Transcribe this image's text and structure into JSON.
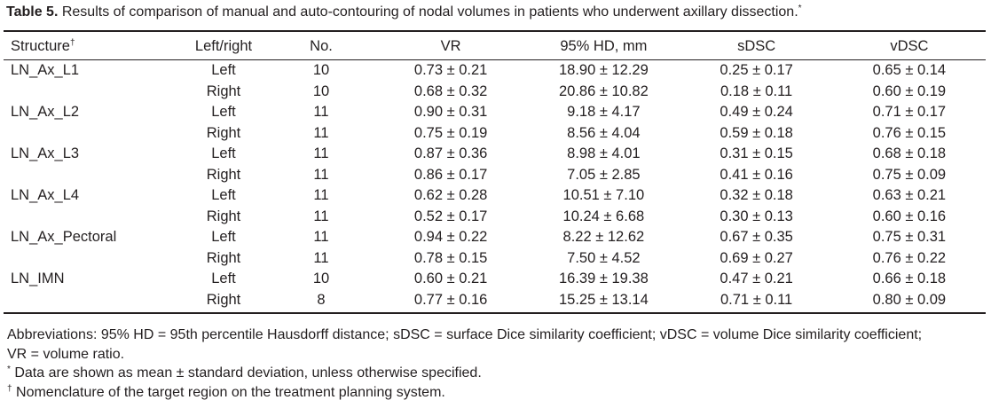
{
  "caption": {
    "label": "Table 5.",
    "text": " Results of comparison of manual and auto-contouring of nodal volumes in patients who underwent axillary dissection.",
    "mark": "*"
  },
  "columns": {
    "structure": "Structure",
    "structure_mark": "†",
    "side": "Left/right",
    "number": "No.",
    "vr": "VR",
    "hd": "95% HD, mm",
    "sdsc": "sDSC",
    "vdsc": "vDSC"
  },
  "rows": [
    {
      "structure": "LN_Ax_L1",
      "side": "Left",
      "n": "10",
      "vr": "0.73 ± 0.21",
      "hd": "18.90 ± 12.29",
      "sdsc": "0.25 ± 0.17",
      "vdsc": "0.65 ± 0.14"
    },
    {
      "structure": "",
      "side": "Right",
      "n": "10",
      "vr": "0.68 ± 0.32",
      "hd": "20.86 ± 10.82",
      "sdsc": "0.18 ± 0.11",
      "vdsc": "0.60 ± 0.19"
    },
    {
      "structure": "LN_Ax_L2",
      "side": "Left",
      "n": "11",
      "vr": "0.90 ± 0.31",
      "hd": "9.18 ± 4.17",
      "sdsc": "0.49 ± 0.24",
      "vdsc": "0.71 ± 0.17"
    },
    {
      "structure": "",
      "side": "Right",
      "n": "11",
      "vr": "0.75 ± 0.19",
      "hd": "8.56 ± 4.04",
      "sdsc": "0.59 ± 0.18",
      "vdsc": "0.76 ± 0.15"
    },
    {
      "structure": "LN_Ax_L3",
      "side": "Left",
      "n": "11",
      "vr": "0.87 ± 0.36",
      "hd": "8.98 ± 4.01",
      "sdsc": "0.31 ± 0.15",
      "vdsc": "0.68 ± 0.18"
    },
    {
      "structure": "",
      "side": "Right",
      "n": "11",
      "vr": "0.86 ± 0.17",
      "hd": "7.05 ± 2.85",
      "sdsc": "0.41 ± 0.16",
      "vdsc": "0.75 ± 0.09"
    },
    {
      "structure": "LN_Ax_L4",
      "side": "Left",
      "n": "11",
      "vr": "0.62 ± 0.28",
      "hd": "10.51 ± 7.10",
      "sdsc": "0.32 ± 0.18",
      "vdsc": "0.63 ± 0.21"
    },
    {
      "structure": "",
      "side": "Right",
      "n": "11",
      "vr": "0.52 ± 0.17",
      "hd": "10.24 ± 6.68",
      "sdsc": "0.30 ± 0.13",
      "vdsc": "0.60 ± 0.16"
    },
    {
      "structure": "LN_Ax_Pectoral",
      "side": "Left",
      "n": "11",
      "vr": "0.94 ± 0.22",
      "hd": "8.22 ± 12.62",
      "sdsc": "0.67 ± 0.35",
      "vdsc": "0.75 ± 0.31"
    },
    {
      "structure": "",
      "side": "Right",
      "n": "11",
      "vr": "0.78 ± 0.15",
      "hd": "7.50 ± 4.52",
      "sdsc": "0.69 ± 0.27",
      "vdsc": "0.76 ± 0.22"
    },
    {
      "structure": "LN_IMN",
      "side": "Left",
      "n": "10",
      "vr": "0.60 ± 0.21",
      "hd": "16.39 ± 19.38",
      "sdsc": "0.47 ± 0.21",
      "vdsc": "0.66 ± 0.18"
    },
    {
      "structure": "",
      "side": "Right",
      "n": "8",
      "vr": "0.77 ± 0.16",
      "hd": "15.25 ± 13.14",
      "sdsc": "0.71 ± 0.11",
      "vdsc": "0.80 ± 0.09"
    }
  ],
  "footnotes": {
    "abbreviations": "Abbreviations: 95% HD = 95th percentile Hausdorff distance; sDSC = surface Dice similarity coefficient; vDSC = volume Dice similarity coefficient; VR = volume ratio.",
    "star_mark": "*",
    "star_text": " Data are shown as mean ± standard deviation, unless otherwise specified.",
    "dagger_mark": "†",
    "dagger_text": " Nomenclature of the target region on the treatment planning system."
  }
}
